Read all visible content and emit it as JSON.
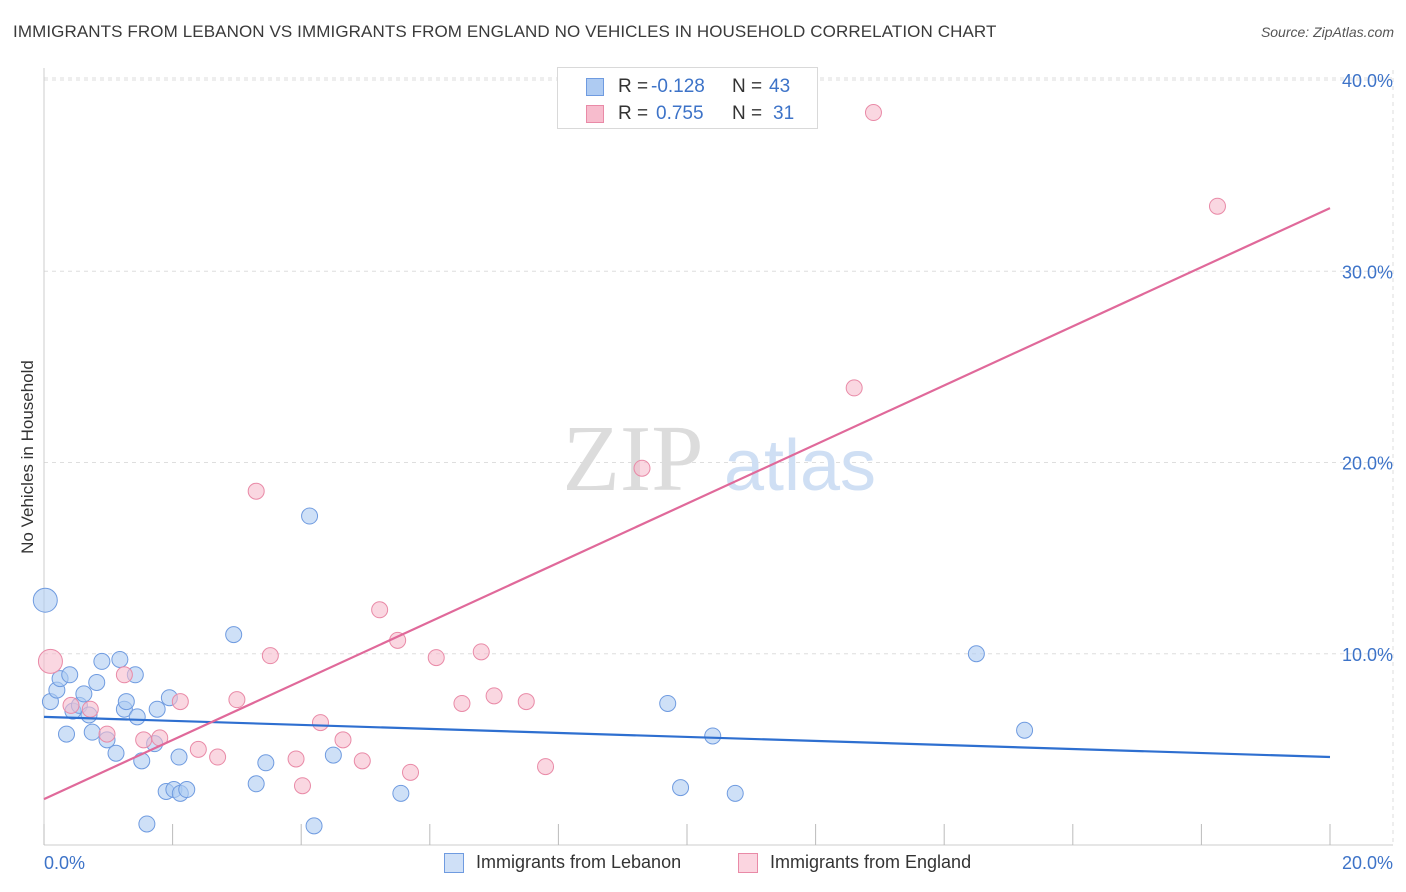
{
  "title": "IMMIGRANTS FROM LEBANON VS IMMIGRANTS FROM ENGLAND NO VEHICLES IN HOUSEHOLD CORRELATION CHART",
  "source": "Source: ZipAtlas.com",
  "watermark": {
    "zip": "ZIP",
    "atlas": "atlas"
  },
  "legend": {
    "r_label": "R =",
    "n_label": "N =",
    "rows": [
      {
        "r": "-0.128",
        "n": "43"
      },
      {
        "r": "0.755",
        "n": "31"
      }
    ]
  },
  "colors": {
    "lebanon_fill": "#aecbf2",
    "lebanon_stroke": "#6f9be0",
    "lebanon_line": "#2e6fd0",
    "england_fill": "#f7bccd",
    "england_stroke": "#e98aa7",
    "england_line": "#e0699a",
    "tick_label": "#3d73c8",
    "grid": "#dedede"
  },
  "chart_data": {
    "type": "scatter",
    "title": "IMMIGRANTS FROM LEBANON VS IMMIGRANTS FROM ENGLAND NO VEHICLES IN HOUSEHOLD CORRELATION CHART",
    "xlabel": "",
    "ylabel": "No Vehicles in Household",
    "xlim": [
      0,
      20
    ],
    "ylim": [
      0,
      40
    ],
    "x_tick_labels": [
      {
        "value": 0,
        "label": "0.0%"
      },
      {
        "value": 20,
        "label": "20.0%"
      }
    ],
    "y_tick_labels": [
      {
        "value": 10,
        "label": "10.0%"
      },
      {
        "value": 20,
        "label": "20.0%"
      },
      {
        "value": 30,
        "label": "30.0%"
      },
      {
        "value": 40,
        "label": "40.0%"
      }
    ],
    "series": [
      {
        "name": "Immigrants from Lebanon",
        "r": -0.128,
        "n": 43,
        "trend": {
          "x": [
            0,
            20
          ],
          "y": [
            6.7,
            4.6
          ]
        },
        "points": [
          {
            "x": 0.02,
            "y": 12.8,
            "big": true
          },
          {
            "x": 0.1,
            "y": 7.5
          },
          {
            "x": 0.2,
            "y": 8.1
          },
          {
            "x": 0.25,
            "y": 8.7
          },
          {
            "x": 0.35,
            "y": 5.8
          },
          {
            "x": 0.4,
            "y": 8.9
          },
          {
            "x": 0.45,
            "y": 7.0
          },
          {
            "x": 0.55,
            "y": 7.3
          },
          {
            "x": 0.62,
            "y": 7.9
          },
          {
            "x": 0.7,
            "y": 6.8
          },
          {
            "x": 0.75,
            "y": 5.9
          },
          {
            "x": 0.82,
            "y": 8.5
          },
          {
            "x": 0.9,
            "y": 9.6
          },
          {
            "x": 0.98,
            "y": 5.5
          },
          {
            "x": 1.12,
            "y": 4.8
          },
          {
            "x": 1.18,
            "y": 9.7
          },
          {
            "x": 1.25,
            "y": 7.1
          },
          {
            "x": 1.28,
            "y": 7.5
          },
          {
            "x": 1.42,
            "y": 8.9
          },
          {
            "x": 1.45,
            "y": 6.7
          },
          {
            "x": 1.52,
            "y": 4.4
          },
          {
            "x": 1.6,
            "y": 1.1
          },
          {
            "x": 1.72,
            "y": 5.3
          },
          {
            "x": 1.76,
            "y": 7.1
          },
          {
            "x": 1.9,
            "y": 2.8
          },
          {
            "x": 1.95,
            "y": 7.7
          },
          {
            "x": 2.02,
            "y": 2.9
          },
          {
            "x": 2.1,
            "y": 4.6
          },
          {
            "x": 2.12,
            "y": 2.7
          },
          {
            "x": 2.22,
            "y": 2.9
          },
          {
            "x": 2.95,
            "y": 11.0
          },
          {
            "x": 3.3,
            "y": 3.2
          },
          {
            "x": 3.45,
            "y": 4.3
          },
          {
            "x": 4.13,
            "y": 17.2
          },
          {
            "x": 4.2,
            "y": 1.0
          },
          {
            "x": 4.5,
            "y": 4.7
          },
          {
            "x": 5.55,
            "y": 2.7
          },
          {
            "x": 9.7,
            "y": 7.4
          },
          {
            "x": 9.9,
            "y": 3.0
          },
          {
            "x": 10.4,
            "y": 5.7
          },
          {
            "x": 10.75,
            "y": 2.7
          },
          {
            "x": 14.5,
            "y": 10.0
          },
          {
            "x": 15.25,
            "y": 6.0
          }
        ]
      },
      {
        "name": "Immigrants from England",
        "r": 0.755,
        "n": 31,
        "trend": {
          "x": [
            0,
            20
          ],
          "y": [
            2.4,
            33.3
          ]
        },
        "points": [
          {
            "x": 0.1,
            "y": 9.6,
            "big": true
          },
          {
            "x": 0.42,
            "y": 7.3
          },
          {
            "x": 0.72,
            "y": 7.1
          },
          {
            "x": 0.98,
            "y": 5.8
          },
          {
            "x": 1.25,
            "y": 8.9
          },
          {
            "x": 1.55,
            "y": 5.5
          },
          {
            "x": 1.8,
            "y": 5.6
          },
          {
            "x": 2.12,
            "y": 7.5
          },
          {
            "x": 2.4,
            "y": 5.0
          },
          {
            "x": 2.7,
            "y": 4.6
          },
          {
            "x": 3.0,
            "y": 7.6
          },
          {
            "x": 3.3,
            "y": 18.5
          },
          {
            "x": 3.52,
            "y": 9.9
          },
          {
            "x": 3.92,
            "y": 4.5
          },
          {
            "x": 4.02,
            "y": 3.1
          },
          {
            "x": 4.3,
            "y": 6.4
          },
          {
            "x": 4.65,
            "y": 5.5
          },
          {
            "x": 4.95,
            "y": 4.4
          },
          {
            "x": 5.22,
            "y": 12.3
          },
          {
            "x": 5.5,
            "y": 10.7
          },
          {
            "x": 5.7,
            "y": 3.8
          },
          {
            "x": 6.1,
            "y": 9.8
          },
          {
            "x": 6.5,
            "y": 7.4
          },
          {
            "x": 6.8,
            "y": 10.1
          },
          {
            "x": 7.0,
            "y": 7.8
          },
          {
            "x": 7.5,
            "y": 7.5
          },
          {
            "x": 7.8,
            "y": 4.1
          },
          {
            "x": 9.3,
            "y": 19.7
          },
          {
            "x": 12.6,
            "y": 23.9
          },
          {
            "x": 12.9,
            "y": 38.3
          },
          {
            "x": 18.25,
            "y": 33.4
          }
        ]
      }
    ]
  }
}
